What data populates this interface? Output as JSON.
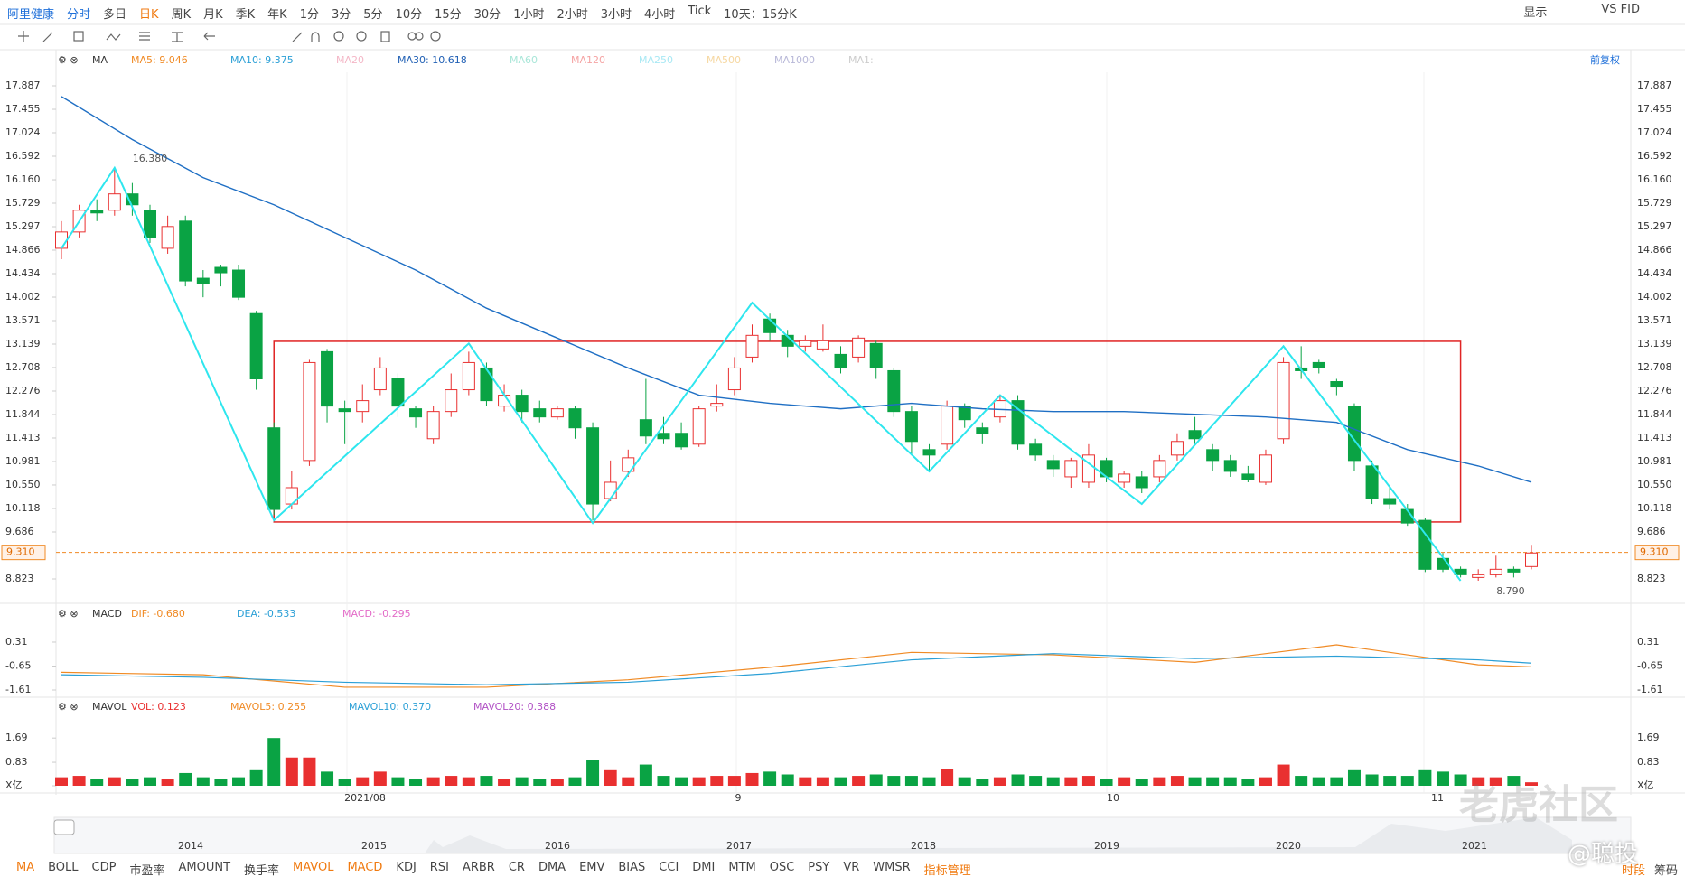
{
  "toolbar": {
    "stock": "阿里健康",
    "periods": [
      "分时",
      "多日",
      "日K",
      "周K",
      "月K",
      "季K",
      "年K",
      "1分",
      "3分",
      "5分",
      "10分",
      "15分",
      "30分",
      "1小时",
      "2小时",
      "3小时",
      "4小时",
      "Tick"
    ],
    "range": "10天：15分K",
    "display": "显示",
    "compare": "VS FID"
  },
  "chart_data": {
    "type": "candlestick",
    "legend": {
      "name": "MA",
      "items": [
        {
          "text": "MA5: 9.046",
          "color": "#f08a24"
        },
        {
          "text": "MA10: 9.375",
          "color": "#2a9fd6"
        },
        {
          "text": "MA20",
          "color": "#f4b6c6"
        },
        {
          "text": "MA30: 10.618",
          "color": "#1f5fb4"
        },
        {
          "text": "MA60",
          "color": "#a8e6d8"
        },
        {
          "text": "MA120",
          "color": "#f5a3a3"
        },
        {
          "text": "MA250",
          "color": "#a8e8f4"
        },
        {
          "text": "MA500",
          "color": "#f6d7a0"
        },
        {
          "text": "MA1000",
          "color": "#b8b8d8"
        },
        {
          "text": "MA1:",
          "color": "#cccccc"
        }
      ]
    },
    "adjust": "前复权",
    "ylim": [
      8.823,
      17.887
    ],
    "yticks": [
      17.887,
      17.455,
      17.024,
      16.592,
      {
        "value": 16.16,
        "label": "16.160"
      },
      15.729,
      15.297,
      14.866,
      14.434,
      14.002,
      13.571,
      13.139,
      12.708,
      12.276,
      11.844,
      11.413,
      10.981,
      {
        "value": 10.55,
        "label": "10.550"
      },
      10.118,
      9.686,
      8.823
    ],
    "candles": [
      [
        14.9,
        15.2,
        15.4,
        14.7
      ],
      [
        15.2,
        15.6,
        15.7,
        15.1
      ],
      [
        15.6,
        15.55,
        15.8,
        15.4
      ],
      [
        15.6,
        15.9,
        16.38,
        15.5
      ],
      [
        15.9,
        15.7,
        16.1,
        15.5
      ],
      [
        15.6,
        15.1,
        15.7,
        15.0
      ],
      [
        14.9,
        15.3,
        15.5,
        14.8
      ],
      [
        15.4,
        14.3,
        15.5,
        14.2
      ],
      [
        14.35,
        14.25,
        14.5,
        14.0
      ],
      [
        14.55,
        14.45,
        14.6,
        14.2
      ],
      [
        14.5,
        14.0,
        14.6,
        13.95
      ],
      [
        13.7,
        12.5,
        13.75,
        12.3
      ],
      [
        11.6,
        10.1,
        11.7,
        10.0
      ],
      [
        10.2,
        10.5,
        10.8,
        10.1
      ],
      [
        11.0,
        12.8,
        12.85,
        10.9
      ],
      [
        13.0,
        12.0,
        13.05,
        11.7
      ],
      [
        11.95,
        11.9,
        12.1,
        11.3
      ],
      [
        11.9,
        12.1,
        12.4,
        11.7
      ],
      [
        12.3,
        12.7,
        12.9,
        12.2
      ],
      [
        12.5,
        12.0,
        12.6,
        11.8
      ],
      [
        11.95,
        11.8,
        12.0,
        11.6
      ],
      [
        11.4,
        11.9,
        12.0,
        11.3
      ],
      [
        11.9,
        12.3,
        12.6,
        11.8
      ],
      [
        12.3,
        12.8,
        13.0,
        12.2
      ],
      [
        12.7,
        12.1,
        12.8,
        12.0
      ],
      [
        12.0,
        12.2,
        12.4,
        11.9
      ],
      [
        12.2,
        11.9,
        12.3,
        11.7
      ],
      [
        11.95,
        11.8,
        12.1,
        11.7
      ],
      [
        11.8,
        11.95,
        12.0,
        11.75
      ],
      [
        11.95,
        11.6,
        12.0,
        11.4
      ],
      [
        11.6,
        10.2,
        11.7,
        9.9
      ],
      [
        10.3,
        10.6,
        11.0,
        10.25
      ],
      [
        10.8,
        11.05,
        11.2,
        10.7
      ],
      [
        11.75,
        11.45,
        12.5,
        11.3
      ],
      [
        11.5,
        11.4,
        11.8,
        11.3
      ],
      [
        11.5,
        11.25,
        11.7,
        11.2
      ],
      [
        11.3,
        11.95,
        12.0,
        11.25
      ],
      [
        12.0,
        12.05,
        12.4,
        11.9
      ],
      [
        12.3,
        12.7,
        12.9,
        12.2
      ],
      [
        12.9,
        13.3,
        13.5,
        12.8
      ],
      [
        13.6,
        13.35,
        13.7,
        13.2
      ],
      [
        13.3,
        13.1,
        13.4,
        12.9
      ],
      [
        13.1,
        13.2,
        13.3,
        13.0
      ],
      [
        13.05,
        13.2,
        13.5,
        13.0
      ],
      [
        12.95,
        12.7,
        13.1,
        12.6
      ],
      [
        12.9,
        13.25,
        13.3,
        12.8
      ],
      [
        13.15,
        12.7,
        13.2,
        12.5
      ],
      [
        12.65,
        11.9,
        12.7,
        11.8
      ],
      [
        11.9,
        11.35,
        12.0,
        11.1
      ],
      [
        11.2,
        11.1,
        11.3,
        10.8
      ],
      [
        11.3,
        12.0,
        12.1,
        11.2
      ],
      [
        12.0,
        11.75,
        12.05,
        11.6
      ],
      [
        11.6,
        11.5,
        11.7,
        11.3
      ],
      [
        11.8,
        12.1,
        12.2,
        11.7
      ],
      [
        12.1,
        11.3,
        12.2,
        11.2
      ],
      [
        11.3,
        11.1,
        11.4,
        11.0
      ],
      [
        11.0,
        10.85,
        11.1,
        10.7
      ],
      [
        10.7,
        11.0,
        11.05,
        10.5
      ],
      [
        10.6,
        11.1,
        11.3,
        10.5
      ],
      [
        11.0,
        10.7,
        11.05,
        10.6
      ],
      [
        10.6,
        10.75,
        10.8,
        10.5
      ],
      [
        10.7,
        10.5,
        10.8,
        10.4
      ],
      [
        10.7,
        11.0,
        11.1,
        10.6
      ],
      [
        11.1,
        11.35,
        11.5,
        11.0
      ],
      [
        11.55,
        11.4,
        11.8,
        11.3
      ],
      [
        11.2,
        11.0,
        11.3,
        10.8
      ],
      [
        11.0,
        10.8,
        11.1,
        10.7
      ],
      [
        10.75,
        10.65,
        10.9,
        10.6
      ],
      [
        10.6,
        11.1,
        11.2,
        10.55
      ],
      [
        11.4,
        12.8,
        12.9,
        11.3
      ],
      [
        12.7,
        12.65,
        13.1,
        12.5
      ],
      [
        12.8,
        12.7,
        12.85,
        12.6
      ],
      [
        12.45,
        12.35,
        12.5,
        12.2
      ],
      [
        12.0,
        11.0,
        12.05,
        10.8
      ],
      [
        10.9,
        10.3,
        11.0,
        10.2
      ],
      [
        10.3,
        10.2,
        10.5,
        10.1
      ],
      [
        10.1,
        9.85,
        10.2,
        9.8
      ],
      [
        9.9,
        9.0,
        9.95,
        8.95
      ],
      [
        9.2,
        9.0,
        9.3,
        8.95
      ],
      [
        9.0,
        8.9,
        9.05,
        8.85
      ],
      [
        8.85,
        8.9,
        9.0,
        8.79
      ],
      [
        8.9,
        9.0,
        9.25,
        8.85
      ],
      [
        9.0,
        8.95,
        9.05,
        8.85
      ],
      [
        9.05,
        9.3,
        9.45,
        9.0
      ]
    ],
    "ma30": {
      "color": "#1f6fc4",
      "x": [
        0,
        4,
        8,
        12,
        16,
        20,
        24,
        28,
        32,
        36,
        40,
        44,
        48,
        52,
        56,
        60,
        64,
        68,
        72,
        76,
        80,
        83
      ],
      "values": [
        17.69,
        16.9,
        16.2,
        15.7,
        15.1,
        14.5,
        13.8,
        13.25,
        12.7,
        12.2,
        12.05,
        11.95,
        12.05,
        11.95,
        11.9,
        11.9,
        11.85,
        11.8,
        11.7,
        11.2,
        10.9,
        10.6
      ]
    },
    "zigzag": {
      "color": "#2ee6ee",
      "x": [
        0,
        3,
        12,
        23,
        30,
        39,
        49,
        53,
        61,
        69,
        79
      ],
      "values": [
        14.9,
        16.38,
        9.9,
        13.15,
        9.85,
        13.9,
        10.8,
        12.2,
        10.2,
        13.1,
        8.79
      ]
    },
    "box": {
      "color": "#e02424",
      "xlim": [
        12,
        79
      ],
      "ylim": [
        9.87,
        13.19
      ]
    },
    "current_price": {
      "value": 9.31,
      "label": "9.310"
    },
    "annotations": [
      {
        "label": "16.380",
        "value": 16.38,
        "x": 3
      },
      {
        "label": "8.790",
        "value": 8.79,
        "x": 80
      }
    ],
    "macd": {
      "type": "line",
      "legend": {
        "name": "MACD",
        "items": [
          {
            "text": "DIF: -0.680",
            "color": "#f08a24"
          },
          {
            "text": "DEA: -0.533",
            "color": "#2a9fd6"
          },
          {
            "text": "MACD: -0.295",
            "color": "#e36cc8"
          }
        ]
      },
      "ylim": [
        -1.9,
        1.07
      ],
      "yticks": [
        0.31,
        -0.65,
        -1.61
      ],
      "series": [
        {
          "color": "#f08a24",
          "x": [
            0,
            8,
            16,
            24,
            32,
            40,
            48,
            56,
            64,
            72,
            80,
            83
          ],
          "values": [
            -0.9,
            -1.0,
            -1.5,
            -1.5,
            -1.2,
            -0.7,
            -0.1,
            -0.2,
            -0.5,
            0.2,
            -0.6,
            -0.68
          ]
        },
        {
          "color": "#2a9fd6",
          "x": [
            0,
            8,
            16,
            24,
            32,
            40,
            48,
            56,
            64,
            72,
            80,
            83
          ],
          "values": [
            -1.0,
            -1.1,
            -1.3,
            -1.4,
            -1.3,
            -0.95,
            -0.4,
            -0.15,
            -0.35,
            -0.25,
            -0.4,
            -0.533
          ]
        }
      ]
    },
    "volume": {
      "type": "bar",
      "legend": {
        "name": "MAVOL",
        "items": [
          {
            "text": "VOL: 0.123",
            "color": "#e93030"
          },
          {
            "text": "MAVOL5: 0.255",
            "color": "#f08a24"
          },
          {
            "text": "MAVOL10: 0.370",
            "color": "#2a9fd6"
          },
          {
            "text": "MAVOL20: 0.388",
            "color": "#b04fc4"
          }
        ]
      },
      "ylim": [
        0,
        2.4
      ],
      "yticks": [
        1.69,
        0.83,
        {
          "value": 0,
          "label": "X亿"
        }
      ],
      "values": [
        0.3,
        0.35,
        0.25,
        0.3,
        0.25,
        0.3,
        0.25,
        0.45,
        0.3,
        0.25,
        0.3,
        0.55,
        1.69,
        1.0,
        1.0,
        0.5,
        0.25,
        0.3,
        0.5,
        0.3,
        0.25,
        0.3,
        0.35,
        0.3,
        0.35,
        0.25,
        0.3,
        0.25,
        0.25,
        0.3,
        0.9,
        0.55,
        0.3,
        0.75,
        0.35,
        0.3,
        0.3,
        0.35,
        0.35,
        0.45,
        0.5,
        0.4,
        0.3,
        0.3,
        0.3,
        0.35,
        0.4,
        0.35,
        0.35,
        0.3,
        0.6,
        0.3,
        0.25,
        0.3,
        0.4,
        0.35,
        0.3,
        0.3,
        0.35,
        0.25,
        0.3,
        0.25,
        0.3,
        0.35,
        0.3,
        0.3,
        0.3,
        0.25,
        0.3,
        0.75,
        0.35,
        0.3,
        0.3,
        0.55,
        0.4,
        0.35,
        0.35,
        0.55,
        0.5,
        0.4,
        0.3,
        0.3,
        0.35,
        0.123
      ]
    },
    "dates": [
      "2021/08",
      "9",
      "10",
      "11"
    ],
    "years": [
      "2014",
      "2015",
      "2016",
      "2017",
      "2018",
      "2019",
      "2020",
      "2021"
    ]
  },
  "tabs": [
    "MA",
    "BOLL",
    "CDP",
    "市盈率",
    "AMOUNT",
    "换手率",
    "MAVOL",
    "MACD",
    "KDJ",
    "RSI",
    "ARBR",
    "CR",
    "DMA",
    "EMV",
    "BIAS",
    "CCI",
    "DMI",
    "MTM",
    "OSC",
    "PSY",
    "VR",
    "WMSR",
    "指标管理"
  ],
  "tabs_right": [
    "时段",
    "筹码"
  ],
  "watermark": "老虎社区",
  "author": "@聪投"
}
